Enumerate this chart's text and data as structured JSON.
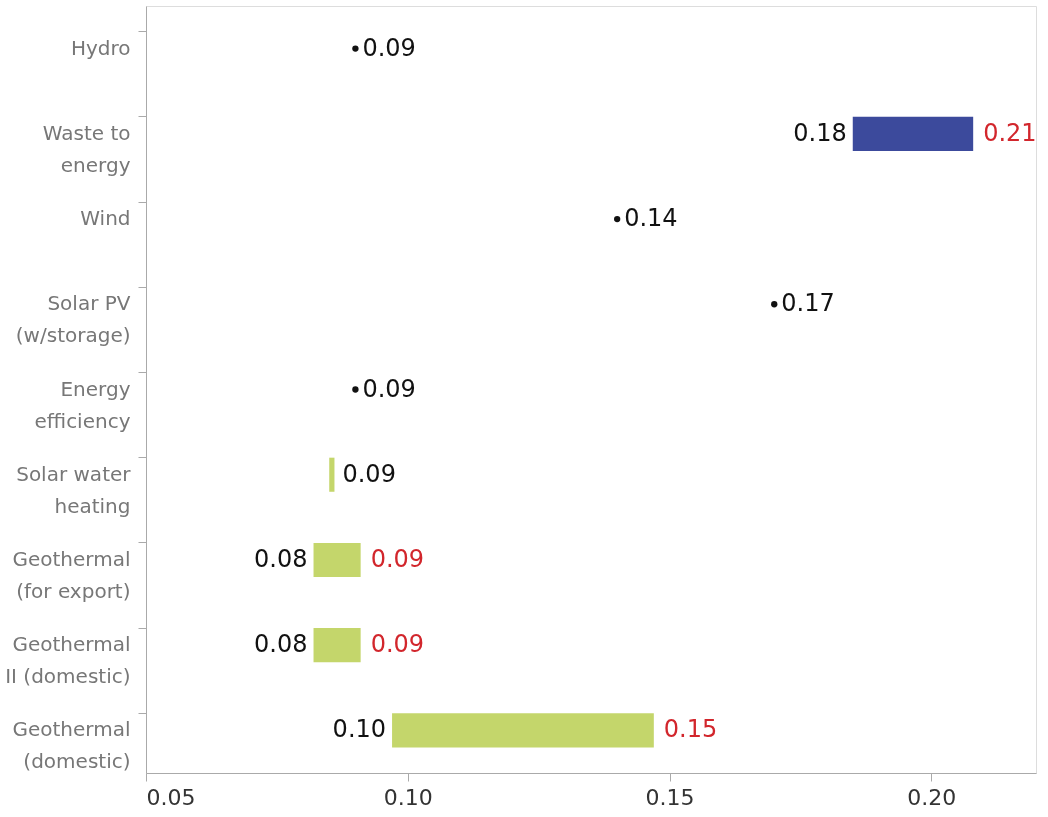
{
  "chart_data": {
    "type": "bar",
    "orientation": "horizontal",
    "categories": [
      "Hydro",
      "Waste to energy",
      "Wind",
      "Solar PV (w/storage)",
      "Energy efficiency",
      "Solar water heating",
      "Geothermal (for export)",
      "Geothermal II (domestic)",
      "Geothermal (domestic)"
    ],
    "base": [
      null,
      0.185,
      null,
      null,
      null,
      0.085,
      0.082,
      0.082,
      0.097
    ],
    "values": [
      null,
      0.023,
      null,
      null,
      null,
      0.001,
      0.009,
      0.009,
      0.05
    ],
    "series": [
      {
        "type": "scatter",
        "marker": "circle",
        "color": "#111111",
        "values": [
          0.09,
          null,
          0.14,
          0.17,
          0.09,
          null,
          null,
          null,
          null
        ],
        "value_labels": [
          "0.09",
          null,
          "0.14",
          "0.17",
          "0.09",
          null,
          null,
          null,
          null
        ]
      }
    ],
    "colors": [
      "#c4d66b",
      "#3c4a9c",
      "#c4d66b",
      "#c4d66b",
      "#c4d66b",
      "#c4d66b",
      "#c4d66b",
      "#c4d66b",
      "#c4d66b"
    ],
    "value_labels": [
      null,
      "0.21",
      null,
      null,
      null,
      null,
      "0.09",
      "0.09",
      "0.15"
    ],
    "annotations": [
      {
        "text": "0.18",
        "x": 0.185,
        "y": "Waste to energy"
      },
      {
        "text": "0.09",
        "x": 0.086,
        "y": "Solar water heating"
      },
      {
        "text": "0.08",
        "x": 0.082,
        "y": "Geothermal (for export)"
      },
      {
        "text": "0.08",
        "x": 0.082,
        "y": "Geothermal II (domestic)"
      },
      {
        "text": "0.10",
        "x": 0.097,
        "y": "Geothermal (domestic)"
      }
    ],
    "xlim": [
      0.05,
      0.22
    ],
    "xticks": [
      0.05,
      {
        "value": 0.1,
        "label": "0.10"
      },
      0.15,
      {
        "value": 0.2,
        "label": "0.20"
      }
    ],
    "grid": false
  }
}
